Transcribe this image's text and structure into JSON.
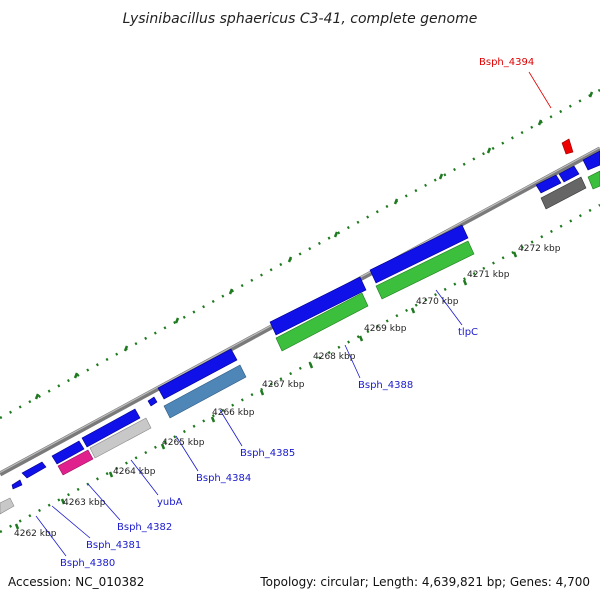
{
  "title": "Lysinibacillus sphaericus C3-41, complete genome",
  "footer": {
    "accession": "Accession: NC_010382",
    "topology": "Topology: circular; Length: 4,639,821 bp; Genes: 4,700"
  },
  "ticks": [
    "4262 kbp",
    "4263 kbp",
    "4264 kbp",
    "4265 kbp",
    "4266 kbp",
    "4267 kbp",
    "4268 kbp",
    "4269 kbp",
    "4270 kbp",
    "4271 kbp",
    "4272 kbp"
  ],
  "gene_labels": [
    "Bsph_4380",
    "Bsph_4381",
    "Bsph_4382",
    "yubA",
    "Bsph_4384",
    "Bsph_4385",
    "Bsph_4388",
    "tlpC",
    "Bsph_4394"
  ],
  "colors": {
    "cds_blue": "#1010e8",
    "rna_green": "#3cbf3c",
    "steelblue": "#4f86b8",
    "gray_feature": "#c8c8c8",
    "dark_gray": "#666666",
    "magenta": "#e0208c",
    "highlight_red": "#ee0000",
    "backbone": "#8a8a8a",
    "tick_green": "#1e7a1e"
  }
}
